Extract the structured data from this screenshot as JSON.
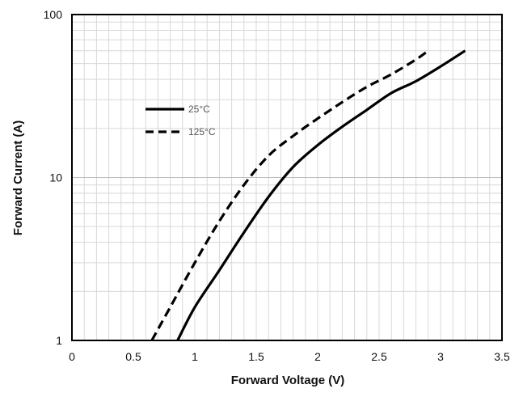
{
  "chart_data": {
    "type": "line",
    "title": "",
    "xlabel": "Forward Voltage (V)",
    "ylabel": "Forward Current   (A)",
    "xlim": [
      0,
      3.5
    ],
    "ylim": [
      1,
      100
    ],
    "y_scale": "log",
    "x_ticks": [
      0,
      0.5,
      1,
      1.5,
      2,
      2.5,
      3,
      3.5
    ],
    "x_tick_labels": [
      "0",
      "0.5",
      "1",
      "1.5",
      "2",
      "2.5",
      "3",
      "3.5"
    ],
    "y_ticks": [
      1,
      10,
      100
    ],
    "y_tick_labels": [
      "1",
      "10",
      "100"
    ],
    "grid": true,
    "legend_position": "upper-left inside plot",
    "series": [
      {
        "name": "25°C",
        "style": "solid",
        "color": "#000000",
        "x": [
          0.86,
          1.0,
          1.2,
          1.4,
          1.6,
          1.8,
          2.0,
          2.2,
          2.4,
          2.6,
          2.8,
          3.0,
          3.2
        ],
        "y": [
          1.0,
          1.6,
          2.7,
          4.6,
          7.6,
          11.6,
          15.8,
          20.5,
          26.0,
          33.0,
          39.0,
          48.0,
          60.0
        ]
      },
      {
        "name": "125°C",
        "style": "dashed",
        "color": "#000000",
        "x": [
          0.65,
          0.8,
          1.0,
          1.2,
          1.4,
          1.6,
          1.8,
          2.0,
          2.2,
          2.4,
          2.6,
          2.8,
          2.9
        ],
        "y": [
          1.0,
          1.6,
          3.0,
          5.4,
          9.0,
          13.6,
          18.0,
          23.0,
          29.0,
          36.0,
          43.0,
          53.0,
          60.0
        ]
      }
    ]
  }
}
